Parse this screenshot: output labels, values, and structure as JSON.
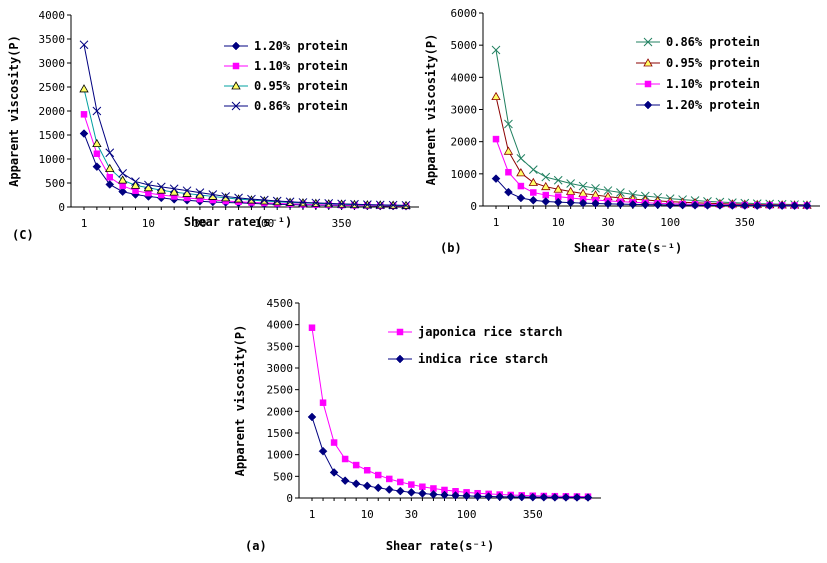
{
  "chart_data": [
    {
      "panel": "(C)",
      "type": "line",
      "xlabel": "Shear rate(s⁻¹)",
      "ylabel": "Apparent viscosity(P)",
      "ylim": [
        0,
        4000
      ],
      "yticks": [
        "0",
        "500",
        "1000",
        "1500",
        "2000",
        "2500",
        "3000",
        "3500",
        "4000"
      ],
      "xtick_labels": [
        "1",
        "10",
        "30",
        "100",
        "350"
      ],
      "categories": [
        1,
        2,
        3,
        4,
        5,
        6,
        7,
        8,
        9,
        10,
        11,
        12,
        13,
        14,
        15,
        16,
        17,
        18,
        19,
        20,
        21,
        22,
        23,
        24,
        25,
        26
      ],
      "legend_position": "top-right",
      "series": [
        {
          "name": "1.20% protein",
          "color": "#000080",
          "marker": "diamond",
          "values": [
            1530,
            840,
            470,
            320,
            260,
            220,
            190,
            160,
            140,
            120,
            105,
            95,
            85,
            75,
            65,
            58,
            50,
            45,
            40,
            35,
            30,
            28,
            25,
            22,
            20,
            18
          ]
        },
        {
          "name": "1.10% protein",
          "color": "#ff00ff",
          "marker": "square",
          "values": [
            1930,
            1110,
            620,
            440,
            340,
            290,
            250,
            220,
            190,
            165,
            145,
            125,
            110,
            95,
            85,
            75,
            65,
            58,
            50,
            45,
            40,
            35,
            32,
            28,
            25,
            22
          ]
        },
        {
          "name": "0.95% protein",
          "color": "#00a0a0",
          "marker": "triangle",
          "values": [
            2460,
            1320,
            800,
            560,
            450,
            400,
            350,
            310,
            280,
            250,
            220,
            190,
            165,
            145,
            125,
            110,
            95,
            85,
            75,
            65,
            58,
            50,
            45,
            40,
            35,
            30
          ]
        },
        {
          "name": "0.86% protein",
          "color": "#000080",
          "marker": "x",
          "values": [
            3380,
            2000,
            1130,
            700,
            530,
            460,
            420,
            380,
            340,
            300,
            260,
            220,
            190,
            165,
            145,
            125,
            110,
            95,
            85,
            75,
            65,
            58,
            50,
            45,
            40,
            35
          ]
        }
      ]
    },
    {
      "panel": "(b)",
      "type": "line",
      "xlabel": "Shear rate(s⁻¹)",
      "ylabel": "Apparent viscosity(P)",
      "ylim": [
        0,
        6000
      ],
      "yticks": [
        "0",
        "1000",
        "2000",
        "3000",
        "4000",
        "5000",
        "6000"
      ],
      "xtick_labels": [
        "1",
        "10",
        "30",
        "100",
        "350"
      ],
      "categories": [
        1,
        2,
        3,
        4,
        5,
        6,
        7,
        8,
        9,
        10,
        11,
        12,
        13,
        14,
        15,
        16,
        17,
        18,
        19,
        20,
        21,
        22,
        23,
        24,
        25,
        26
      ],
      "legend_position": "top-right",
      "series": [
        {
          "name": "0.86% protein",
          "color": "#208060",
          "marker": "x",
          "values": [
            4850,
            2550,
            1480,
            1130,
            900,
            800,
            700,
            620,
            550,
            480,
            420,
            360,
            310,
            270,
            230,
            200,
            170,
            145,
            125,
            105,
            90,
            75,
            65,
            55,
            45,
            40
          ]
        },
        {
          "name": "0.95% protein",
          "color": "#8b0000",
          "marker": "triangle",
          "values": [
            3400,
            1700,
            1030,
            730,
            600,
            520,
            450,
            390,
            340,
            290,
            250,
            215,
            185,
            160,
            135,
            115,
            100,
            85,
            72,
            62,
            52,
            45,
            38,
            32,
            28,
            25
          ]
        },
        {
          "name": "1.10% protein",
          "color": "#ff00ff",
          "marker": "square",
          "values": [
            2080,
            1050,
            620,
            420,
            340,
            290,
            250,
            215,
            185,
            160,
            135,
            115,
            100,
            85,
            72,
            62,
            52,
            45,
            38,
            32,
            28,
            25,
            22,
            20,
            18,
            16
          ]
        },
        {
          "name": "1.20% protein",
          "color": "#000080",
          "marker": "diamond",
          "values": [
            850,
            430,
            250,
            180,
            140,
            120,
            105,
            90,
            78,
            68,
            58,
            50,
            43,
            37,
            32,
            28,
            24,
            21,
            18,
            16,
            14,
            12,
            11,
            10,
            9,
            8
          ]
        }
      ]
    },
    {
      "panel": "(a)",
      "type": "line",
      "xlabel": "Shear rate(s⁻¹)",
      "ylabel": "Apparent viscosity(P)",
      "ylim": [
        0,
        4500
      ],
      "yticks": [
        "0",
        "500",
        "1000",
        "1500",
        "2000",
        "2500",
        "3000",
        "3500",
        "4000",
        "4500"
      ],
      "xtick_labels": [
        "1",
        "10",
        "30",
        "100",
        "350"
      ],
      "categories": [
        1,
        2,
        3,
        4,
        5,
        6,
        7,
        8,
        9,
        10,
        11,
        12,
        13,
        14,
        15,
        16,
        17,
        18,
        19,
        20,
        21,
        22,
        23,
        24,
        25,
        26
      ],
      "legend_position": "top-right",
      "series": [
        {
          "name": "japonica rice starch",
          "color": "#ff00ff",
          "marker": "square",
          "values": [
            3930,
            2200,
            1280,
            900,
            760,
            640,
            530,
            440,
            370,
            310,
            260,
            220,
            185,
            155,
            130,
            110,
            95,
            80,
            70,
            60,
            52,
            46,
            42,
            38,
            35,
            32
          ]
        },
        {
          "name": "indica rice starch",
          "color": "#000080",
          "marker": "diamond",
          "values": [
            1870,
            1080,
            590,
            400,
            330,
            280,
            235,
            195,
            160,
            130,
            105,
            85,
            70,
            58,
            48,
            40,
            34,
            29,
            25,
            22,
            19,
            17,
            15,
            14,
            13,
            12
          ]
        }
      ]
    }
  ]
}
